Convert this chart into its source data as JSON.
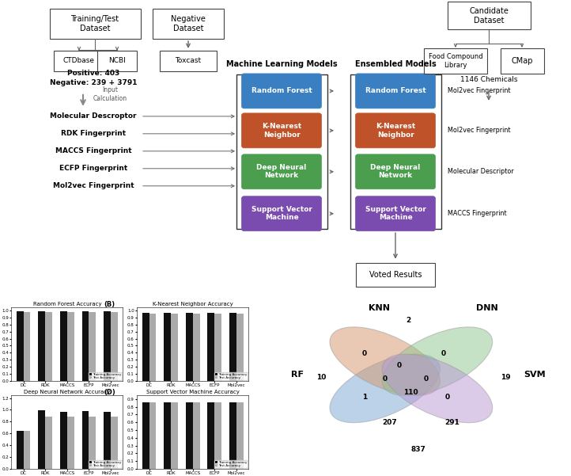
{
  "bg_color": "#f2f2f2",
  "ml_models": [
    {
      "name": "Random Forest",
      "color": "#3a7fc1"
    },
    {
      "name": "K-Nearest\nNeighbor",
      "color": "#c0522a"
    },
    {
      "name": "Deep Neural\nNetwork",
      "color": "#4a9e4e"
    },
    {
      "name": "Support Vector\nMachine",
      "color": "#7b4cb0"
    }
  ],
  "bar_categories": [
    "DC",
    "RDK",
    "MACCS",
    "ECFP",
    "Mol2vec"
  ],
  "rf_train": [
    0.99,
    0.99,
    0.99,
    0.99,
    0.99
  ],
  "rf_test": [
    0.98,
    0.98,
    0.98,
    0.98,
    0.98
  ],
  "knn_train": [
    0.97,
    0.97,
    0.97,
    0.97,
    0.97
  ],
  "knn_test": [
    0.96,
    0.96,
    0.96,
    0.96,
    0.96
  ],
  "dnn_train": [
    0.65,
    0.99,
    0.97,
    0.98,
    0.97
  ],
  "dnn_test": [
    0.65,
    0.89,
    0.89,
    0.89,
    0.89
  ],
  "svm_train": [
    0.86,
    0.86,
    0.86,
    0.86,
    0.86
  ],
  "svm_test": [
    0.86,
    0.86,
    0.86,
    0.86,
    0.86
  ],
  "venn_colors": [
    "#7ba7d4",
    "#d4956a",
    "#8dc48e",
    "#b898d4"
  ],
  "venn_numbers": {
    "knn_only": "2",
    "rf_knn": "0",
    "knn_dnn": "0",
    "rf_knn_dnn": "0",
    "rf_only": "10",
    "rf_knn_svm": "0",
    "knn_dnn_svm": "0",
    "all4": "110",
    "rf_knn_dnn_svm": "0",
    "dnn_only": "0",
    "rf_svm": "0",
    "dnn_svm": "0",
    "svm_only": "19",
    "rf_dnn": "1",
    "knn_dnn_bottom": "207",
    "dnn_svm_bottom": "291",
    "bottom_all": "837"
  }
}
